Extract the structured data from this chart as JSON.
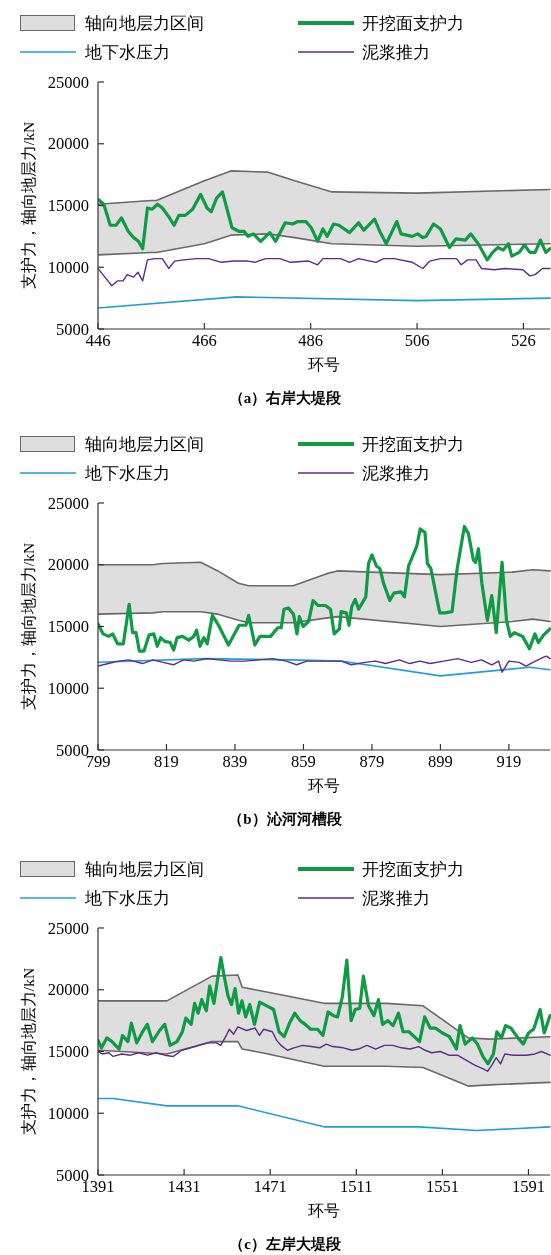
{
  "chart_data": [
    {
      "type": "line",
      "title": "（a）右岸大堤段",
      "xlabel": "环号",
      "ylabel": "支护力，轴向地层力/kN",
      "xlim": [
        446,
        531
      ],
      "xticks": [
        446,
        466,
        486,
        506,
        526
      ],
      "ylim": [
        5000,
        25000
      ],
      "yticks": [
        5000,
        10000,
        15000,
        20000,
        25000
      ],
      "legend": "top",
      "grid": false,
      "series": [
        {
          "name": "轴向地层力区间",
          "type": "line",
          "color": "#6e6767",
          "x": [
            446,
            456,
            457,
            466,
            471,
            478,
            483,
            490,
            506,
            531
          ],
          "values": [
            15100,
            15400,
            15400,
            17000,
            17800,
            17700,
            17000,
            16100,
            16000,
            16300
          ],
          "upper": [
            15100,
            15400,
            15400,
            17000,
            17800,
            17700,
            17000,
            16100,
            16000,
            16300
          ],
          "lower": [
            11000,
            11200,
            11200,
            11900,
            12600,
            12700,
            12400,
            11900,
            11700,
            11900
          ]
        },
        {
          "type": "line",
          "color": "#6e6767",
          "x": [
            446,
            456,
            457,
            466,
            471,
            478,
            483,
            490,
            506,
            531
          ],
          "values": [
            11000,
            11200,
            11200,
            11900,
            12600,
            12700,
            12400,
            11900,
            11700,
            11900
          ]
        },
        {
          "name": "开挖面支护力",
          "type": "line",
          "color": "#0f9a44",
          "x": [
            446,
            447.1,
            448.3,
            449.4,
            450.4,
            451.7,
            452.7,
            453.6,
            454.4,
            455.3,
            456.2,
            457.2,
            458.1,
            459.3,
            460.3,
            461.2,
            462.4,
            463.8,
            465.3,
            466.5,
            467.3,
            468.3,
            469.4,
            471.2,
            472.5,
            473.5,
            474.2,
            475.2,
            476.6,
            478.3,
            479.4,
            481.2,
            482.6,
            483.6,
            485.1,
            486.1,
            487.3,
            488.3,
            489.1,
            490.3,
            491.3,
            493.3,
            495,
            496,
            498,
            499,
            500.2,
            502.2,
            503,
            505.1,
            506.1,
            507.1,
            507.7,
            509.1,
            510.4,
            512.1,
            513.3,
            515.1,
            516.1,
            517.5,
            519.2,
            520.2,
            521.2,
            522.2,
            523.2,
            523.8,
            525.2,
            526.2,
            527.2,
            528.2,
            529.2,
            530.2,
            531
          ],
          "values": [
            15500,
            15100,
            13400,
            13400,
            14000,
            12900,
            12400,
            12100,
            11500,
            14800,
            14700,
            15100,
            14800,
            14100,
            13400,
            14200,
            14200,
            14700,
            15900,
            14800,
            14500,
            15600,
            16100,
            13200,
            12900,
            12900,
            12500,
            12700,
            12100,
            12800,
            12100,
            13600,
            13500,
            13700,
            13700,
            13200,
            12100,
            13100,
            12500,
            13500,
            13400,
            12800,
            13600,
            13000,
            13900,
            12900,
            11900,
            13700,
            12700,
            12500,
            12700,
            12400,
            12500,
            13500,
            13100,
            11600,
            12300,
            12200,
            12700,
            11900,
            10600,
            11200,
            11600,
            11400,
            11900,
            10900,
            11200,
            11800,
            11200,
            11200,
            12200,
            11200,
            11500
          ]
        },
        {
          "name": "地下水压力",
          "type": "line",
          "color": "#1ea0d6",
          "x": [
            446,
            472,
            506,
            531
          ],
          "values": [
            6700,
            7600,
            7300,
            7500
          ]
        },
        {
          "name": "泥浆推力",
          "type": "line",
          "color": "#5b2d8c",
          "x": [
            446,
            447.3,
            448.6,
            449.7,
            450.7,
            451.5,
            452.7,
            453.5,
            454.4,
            455.3,
            456.7,
            458.1,
            459.3,
            460.4,
            462.1,
            464.5,
            466.8,
            469.2,
            471.5,
            474.2,
            475.5,
            477.5,
            480.2,
            482.2,
            485.6,
            487.3,
            488.3,
            491.6,
            493.3,
            495,
            498.3,
            499.7,
            501.7,
            505.1,
            507.1,
            508.4,
            510.4,
            513.4,
            514.3,
            515.5,
            517.1,
            518.1,
            520.5,
            522.5,
            525.9,
            527.2,
            528.2,
            529.6,
            531
          ],
          "values": [
            9900,
            9200,
            8500,
            8900,
            8900,
            9400,
            9200,
            9600,
            8900,
            10600,
            10700,
            10700,
            9900,
            10500,
            10600,
            10700,
            10700,
            10400,
            10500,
            10500,
            10400,
            10700,
            10700,
            10400,
            10500,
            10200,
            10700,
            10700,
            10400,
            10700,
            10400,
            10700,
            10700,
            10400,
            9900,
            10500,
            10700,
            10700,
            10200,
            10600,
            10600,
            9900,
            9800,
            9900,
            9800,
            9300,
            9400,
            9900,
            9900
          ]
        }
      ]
    },
    {
      "type": "line",
      "title": "（b）沁河河槽段",
      "xlabel": "环号",
      "ylabel": "支护力，轴向地层力/kN",
      "xlim": [
        799,
        931
      ],
      "xticks": [
        799,
        819,
        839,
        859,
        879,
        899,
        919
      ],
      "ylim": [
        5000,
        25000
      ],
      "yticks": [
        5000,
        10000,
        15000,
        20000,
        25000
      ],
      "legend": "top",
      "grid": false,
      "series": [
        {
          "name": "轴向地层力区间",
          "type": "line",
          "color": "#6e6767",
          "x": [
            799,
            815,
            818,
            829,
            834,
            840,
            843,
            856,
            866,
            869,
            899,
            920,
            926,
            931
          ],
          "values": [
            20000,
            20000,
            20100,
            20200,
            19500,
            18500,
            18300,
            18300,
            19300,
            19500,
            19200,
            19400,
            19600,
            19500
          ],
          "upper": [
            20000,
            20000,
            20100,
            20200,
            19500,
            18500,
            18300,
            18300,
            19300,
            19500,
            19200,
            19400,
            19600,
            19500
          ],
          "lower": [
            16000,
            16100,
            16200,
            16200,
            16000,
            15500,
            15300,
            15300,
            15700,
            15800,
            15000,
            15400,
            15600,
            15400
          ]
        },
        {
          "type": "line",
          "color": "#6e6767",
          "x": [
            799,
            815,
            818,
            829,
            834,
            840,
            843,
            856,
            866,
            869,
            899,
            920,
            926,
            931
          ],
          "values": [
            16000,
            16100,
            16200,
            16200,
            16000,
            15500,
            15300,
            15300,
            15700,
            15800,
            15000,
            15400,
            15600,
            15400
          ]
        },
        {
          "name": "开挖面支护力",
          "type": "line",
          "color": "#0f9a44",
          "x": [
            799,
            800.5,
            802.1,
            803.3,
            804.7,
            806.4,
            808.1,
            809.1,
            810.1,
            811.1,
            812.4,
            813.9,
            815.3,
            816.3,
            817.3,
            818.5,
            820.1,
            821.1,
            822.1,
            823.7,
            825.5,
            827,
            827.8,
            828.8,
            829.9,
            830.9,
            832.4,
            834,
            837.1,
            840.2,
            842.2,
            843,
            844.8,
            846.3,
            849.4,
            851.5,
            852.5,
            853.3,
            854.6,
            856.1,
            857.1,
            857.8,
            858.9,
            860.5,
            861.8,
            863.3,
            865.4,
            866.9,
            868,
            869.5,
            870,
            871.5,
            872.3,
            873.1,
            874.1,
            875.1,
            877.2,
            878,
            879,
            880.3,
            881.3,
            882.4,
            884.2,
            885.4,
            887.5,
            888.5,
            889.7,
            892.1,
            893.1,
            894.5,
            895.2,
            896.2,
            898.8,
            900.3,
            902.4,
            903.9,
            906,
            907.2,
            908.6,
            909.3,
            910.1,
            911.1,
            912.7,
            914,
            915.3,
            917,
            918.3,
            919.4,
            920.6,
            923,
            925,
            926.6,
            927.6,
            929.1,
            931
          ],
          "values": [
            15200,
            14400,
            14200,
            14400,
            13600,
            13600,
            16800,
            14500,
            14500,
            13000,
            13000,
            14300,
            14400,
            13400,
            14100,
            13800,
            13700,
            13100,
            14100,
            14200,
            13900,
            14200,
            14700,
            13400,
            14100,
            13600,
            15900,
            15200,
            13500,
            15100,
            15100,
            15900,
            13500,
            14200,
            14200,
            14900,
            14900,
            16400,
            16500,
            16000,
            14400,
            15800,
            15000,
            15400,
            17100,
            16700,
            16700,
            16400,
            14400,
            14800,
            16200,
            16100,
            15100,
            16600,
            17200,
            16400,
            17400,
            20100,
            20800,
            19900,
            19700,
            18500,
            17100,
            17700,
            17800,
            17400,
            19900,
            21500,
            22900,
            22600,
            20100,
            19700,
            16100,
            16100,
            16200,
            19700,
            23100,
            22500,
            20400,
            20200,
            21300,
            18500,
            15500,
            17500,
            14500,
            20200,
            15500,
            14200,
            14500,
            14200,
            13200,
            14400,
            13700,
            14300,
            14800
          ]
        },
        {
          "name": "地下水压力",
          "type": "line",
          "color": "#1ea0d6",
          "x": [
            799,
            830,
            855,
            870,
            899,
            925,
            931
          ],
          "values": [
            12100,
            12400,
            12300,
            12200,
            11000,
            11700,
            11500
          ]
        },
        {
          "name": "泥浆推力",
          "type": "line",
          "color": "#5b2d8c",
          "x": [
            799,
            802,
            805,
            808,
            812,
            815,
            818,
            821,
            824,
            827,
            831,
            834,
            838,
            842,
            846,
            850,
            854,
            857,
            860,
            865,
            870,
            873,
            877,
            880,
            883,
            887,
            890,
            893,
            896,
            900,
            904,
            908,
            911,
            914,
            916,
            917,
            919,
            922,
            924,
            926,
            929,
            930,
            931
          ],
          "values": [
            11800,
            12000,
            12200,
            12300,
            12000,
            12300,
            12100,
            11900,
            12300,
            12200,
            12400,
            12300,
            12200,
            12200,
            12300,
            12400,
            12200,
            11900,
            12200,
            12200,
            12200,
            11900,
            12100,
            12200,
            12000,
            12300,
            12000,
            12200,
            12000,
            12200,
            12400,
            12100,
            12300,
            11900,
            12200,
            11300,
            12200,
            12100,
            11800,
            12100,
            12500,
            12600,
            12400
          ]
        }
      ]
    },
    {
      "type": "line",
      "title": "（c）左岸大堤段",
      "xlabel": "环号",
      "ylabel": "支护力，轴向地层力/kN",
      "xlim": [
        1391,
        1601
      ],
      "xticks": [
        1391,
        1431,
        1471,
        1511,
        1551,
        1591
      ],
      "ylim": [
        5000,
        25000
      ],
      "yticks": [
        5000,
        10000,
        15000,
        20000,
        25000
      ],
      "legend": "top",
      "grid": false,
      "series": [
        {
          "name": "轴向地层力区间",
          "type": "line",
          "color": "#6e6767",
          "x": [
            1391,
            1423,
            1444,
            1456,
            1458,
            1470,
            1496,
            1525,
            1542,
            1563,
            1573,
            1601
          ],
          "values": [
            19100,
            19100,
            21100,
            21200,
            20200,
            19800,
            18900,
            18900,
            18700,
            16100,
            16000,
            16200
          ],
          "upper": [
            19100,
            19100,
            21100,
            21200,
            20200,
            19800,
            18900,
            18900,
            18700,
            16100,
            16000,
            16200
          ],
          "lower": [
            15100,
            14800,
            15800,
            15800,
            15200,
            14800,
            13800,
            13800,
            13700,
            12200,
            12300,
            12500
          ]
        },
        {
          "type": "line",
          "color": "#6e6767",
          "x": [
            1391,
            1423,
            1444,
            1456,
            1458,
            1470,
            1496,
            1525,
            1542,
            1563,
            1573,
            1601
          ],
          "values": [
            15100,
            14800,
            15800,
            15800,
            15200,
            14800,
            13800,
            13800,
            13700,
            12200,
            12300,
            12500
          ]
        },
        {
          "name": "开挖面支护力",
          "type": "line",
          "color": "#0f9a44",
          "x": [
            1391,
            1392.6,
            1395.1,
            1397.5,
            1400.8,
            1402.4,
            1404.9,
            1406.5,
            1409,
            1411.4,
            1413.9,
            1416.3,
            1419.6,
            1422,
            1424.5,
            1427.7,
            1430.2,
            1431.8,
            1434.3,
            1435.9,
            1437.5,
            1439.2,
            1441.3,
            1442.9,
            1444.9,
            1446.5,
            1448.1,
            1449.4,
            1451.4,
            1453,
            1454.7,
            1456.3,
            1457.9,
            1459.6,
            1461.5,
            1463.7,
            1466.1,
            1469.4,
            1472.6,
            1475.1,
            1477.5,
            1480,
            1482.4,
            1484.9,
            1487.3,
            1489.8,
            1493,
            1495.5,
            1497.9,
            1500.4,
            1502.3,
            1504.5,
            1506.6,
            1508.6,
            1510.5,
            1512.6,
            1514.3,
            1516.7,
            1519.2,
            1521.3,
            1523.2,
            1525.7,
            1528.1,
            1530.6,
            1532.7,
            1535.5,
            1537.9,
            1540.4,
            1542.8,
            1545.3,
            1547.7,
            1551,
            1554.3,
            1557.5,
            1559.2,
            1561.6,
            1564.9,
            1567.3,
            1569.8,
            1572.2,
            1574.7,
            1576.3,
            1578.4,
            1580.4,
            1582.8,
            1586.1,
            1588.6,
            1591,
            1593.4,
            1596.4,
            1598.3,
            1601
          ],
          "values": [
            15900,
            15300,
            16100,
            15800,
            15200,
            16300,
            15800,
            17300,
            15700,
            16500,
            17200,
            15800,
            16700,
            17200,
            15500,
            15800,
            16600,
            17700,
            17200,
            18900,
            18100,
            19200,
            18300,
            20300,
            18900,
            20800,
            22600,
            21300,
            19500,
            18800,
            20100,
            18100,
            19100,
            17800,
            18800,
            17200,
            19000,
            18700,
            18400,
            16600,
            16200,
            17300,
            18100,
            17500,
            17200,
            16800,
            16800,
            16300,
            18200,
            17900,
            17800,
            19400,
            22400,
            17500,
            18400,
            18500,
            21100,
            18700,
            17900,
            19200,
            17200,
            17500,
            17100,
            18100,
            16600,
            16600,
            16200,
            15800,
            17800,
            16900,
            16900,
            16500,
            16200,
            15200,
            17100,
            15600,
            16100,
            15600,
            14600,
            14000,
            14800,
            16600,
            16100,
            17100,
            16900,
            16100,
            15600,
            16500,
            16800,
            18400,
            16500,
            17900
          ]
        },
        {
          "name": "地下水压力",
          "type": "line",
          "color": "#1ea0d6",
          "x": [
            1391,
            1398,
            1423,
            1456,
            1496,
            1540,
            1567,
            1601
          ],
          "values": [
            11200,
            11200,
            10600,
            10600,
            8900,
            8900,
            8600,
            8900
          ]
        },
        {
          "name": "泥浆推力",
          "type": "line",
          "color": "#5b2d8c",
          "x": [
            1391,
            1393,
            1396,
            1398,
            1402,
            1406,
            1410,
            1414,
            1418,
            1422,
            1426,
            1430,
            1434,
            1438,
            1442,
            1446,
            1448,
            1450,
            1452,
            1454,
            1456,
            1460,
            1464,
            1466,
            1468,
            1472,
            1474,
            1476,
            1479,
            1482,
            1486,
            1490,
            1494,
            1497,
            1500,
            1505,
            1509,
            1512,
            1516,
            1520,
            1524,
            1528,
            1532,
            1536,
            1540,
            1543,
            1546,
            1550,
            1554,
            1558,
            1562,
            1566,
            1570,
            1572,
            1574,
            1576,
            1578,
            1580,
            1584,
            1590,
            1594,
            1597,
            1601
          ],
          "values": [
            15000,
            14800,
            14900,
            14600,
            14800,
            14700,
            14900,
            14700,
            14900,
            14700,
            14600,
            15100,
            15300,
            15500,
            15700,
            15700,
            15500,
            16100,
            16800,
            16400,
            17000,
            16700,
            16900,
            16300,
            16800,
            16600,
            15900,
            15500,
            15100,
            15300,
            15500,
            15400,
            15300,
            15600,
            15400,
            15300,
            15100,
            15200,
            15500,
            15200,
            15500,
            15500,
            15300,
            15200,
            15400,
            15100,
            14900,
            15000,
            14700,
            14700,
            14300,
            13900,
            13600,
            13400,
            13900,
            14500,
            14000,
            14800,
            14700,
            14700,
            14800,
            15000,
            14700
          ]
        }
      ]
    }
  ]
}
